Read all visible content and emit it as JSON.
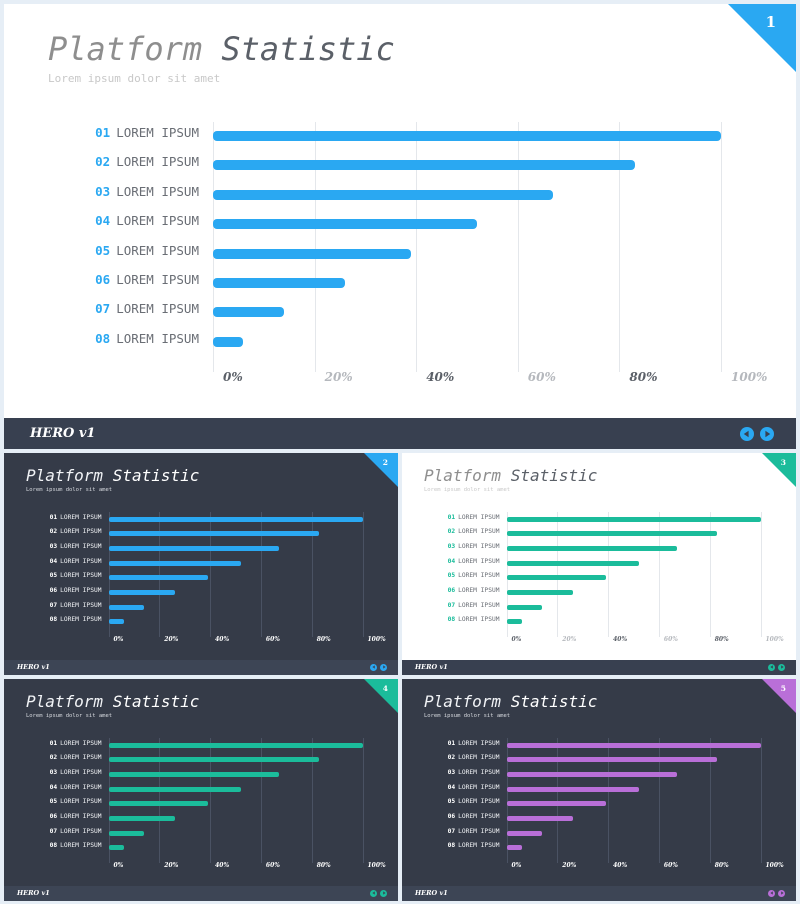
{
  "slides": [
    {
      "id": "slide-1",
      "number": "1",
      "theme": "light",
      "accent": "#2aa8f2",
      "title_a": "Platform",
      "title_b": "Statistic",
      "subtitle": "Lorem ipsum dolor sit amet",
      "brand_a": "HERO",
      "brand_b": "v1",
      "ticks": [
        "0%",
        "20%",
        "40%",
        "60%",
        "80%",
        "100%"
      ],
      "rows": [
        {
          "num": "01",
          "label": "LOREM IPSUM"
        },
        {
          "num": "02",
          "label": "LOREM IPSUM"
        },
        {
          "num": "03",
          "label": "LOREM IPSUM"
        },
        {
          "num": "04",
          "label": "LOREM IPSUM"
        },
        {
          "num": "05",
          "label": "LOREM IPSUM"
        },
        {
          "num": "06",
          "label": "LOREM IPSUM"
        },
        {
          "num": "07",
          "label": "LOREM IPSUM"
        },
        {
          "num": "08",
          "label": "LOREM IPSUM"
        }
      ]
    },
    {
      "id": "slide-2",
      "number": "2",
      "theme": "dark",
      "accent": "#2aa8f2",
      "title_a": "Platform",
      "title_b": "Statistic",
      "subtitle": "Lorem ipsum dolor sit amet",
      "brand_a": "HERO",
      "brand_b": "v1",
      "ticks": [
        "0%",
        "20%",
        "40%",
        "60%",
        "80%",
        "100%"
      ],
      "rows": [
        {
          "num": "01",
          "label": "LOREM IPSUM"
        },
        {
          "num": "02",
          "label": "LOREM IPSUM"
        },
        {
          "num": "03",
          "label": "LOREM IPSUM"
        },
        {
          "num": "04",
          "label": "LOREM IPSUM"
        },
        {
          "num": "05",
          "label": "LOREM IPSUM"
        },
        {
          "num": "06",
          "label": "LOREM IPSUM"
        },
        {
          "num": "07",
          "label": "LOREM IPSUM"
        },
        {
          "num": "08",
          "label": "LOREM IPSUM"
        }
      ]
    },
    {
      "id": "slide-3",
      "number": "3",
      "theme": "light",
      "accent": "#1bbc9b",
      "title_a": "Platform",
      "title_b": "Statistic",
      "subtitle": "Lorem ipsum dolor sit amet",
      "brand_a": "HERO",
      "brand_b": "v1",
      "ticks": [
        "0%",
        "20%",
        "40%",
        "60%",
        "80%",
        "100%"
      ],
      "rows": [
        {
          "num": "01",
          "label": "LOREM IPSUM"
        },
        {
          "num": "02",
          "label": "LOREM IPSUM"
        },
        {
          "num": "03",
          "label": "LOREM IPSUM"
        },
        {
          "num": "04",
          "label": "LOREM IPSUM"
        },
        {
          "num": "05",
          "label": "LOREM IPSUM"
        },
        {
          "num": "06",
          "label": "LOREM IPSUM"
        },
        {
          "num": "07",
          "label": "LOREM IPSUM"
        },
        {
          "num": "08",
          "label": "LOREM IPSUM"
        }
      ]
    },
    {
      "id": "slide-4",
      "number": "4",
      "theme": "dark",
      "accent": "#1bbc9b",
      "title_a": "Platform",
      "title_b": "Statistic",
      "subtitle": "Lorem ipsum dolor sit amet",
      "brand_a": "HERO",
      "brand_b": "v1",
      "ticks": [
        "0%",
        "20%",
        "40%",
        "60%",
        "80%",
        "100%"
      ],
      "rows": [
        {
          "num": "01",
          "label": "LOREM IPSUM"
        },
        {
          "num": "02",
          "label": "LOREM IPSUM"
        },
        {
          "num": "03",
          "label": "LOREM IPSUM"
        },
        {
          "num": "04",
          "label": "LOREM IPSUM"
        },
        {
          "num": "05",
          "label": "LOREM IPSUM"
        },
        {
          "num": "06",
          "label": "LOREM IPSUM"
        },
        {
          "num": "07",
          "label": "LOREM IPSUM"
        },
        {
          "num": "08",
          "label": "LOREM IPSUM"
        }
      ]
    },
    {
      "id": "slide-5",
      "number": "5",
      "theme": "dark",
      "accent": "#b96fd8",
      "title_a": "Platform",
      "title_b": "Statistic",
      "subtitle": "Lorem ipsum dolor sit amet",
      "brand_a": "HERO",
      "brand_b": "v1",
      "ticks": [
        "0%",
        "20%",
        "40%",
        "60%",
        "80%",
        "100%"
      ],
      "rows": [
        {
          "num": "01",
          "label": "LOREM IPSUM"
        },
        {
          "num": "02",
          "label": "LOREM IPSUM"
        },
        {
          "num": "03",
          "label": "LOREM IPSUM"
        },
        {
          "num": "04",
          "label": "LOREM IPSUM"
        },
        {
          "num": "05",
          "label": "LOREM IPSUM"
        },
        {
          "num": "06",
          "label": "LOREM IPSUM"
        },
        {
          "num": "07",
          "label": "LOREM IPSUM"
        },
        {
          "num": "08",
          "label": "LOREM IPSUM"
        }
      ]
    }
  ],
  "chart_data": {
    "type": "bar",
    "orientation": "horizontal",
    "categories": [
      "01 LOREM IPSUM",
      "02 LOREM IPSUM",
      "03 LOREM IPSUM",
      "04 LOREM IPSUM",
      "05 LOREM IPSUM",
      "06 LOREM IPSUM",
      "07 LOREM IPSUM",
      "08 LOREM IPSUM"
    ],
    "values": [
      100,
      83,
      67,
      52,
      39,
      26,
      14,
      6
    ],
    "xlim": [
      0,
      100
    ],
    "ticks": [
      "0%",
      "20%",
      "40%",
      "60%",
      "80%",
      "100%"
    ],
    "grid": true
  }
}
